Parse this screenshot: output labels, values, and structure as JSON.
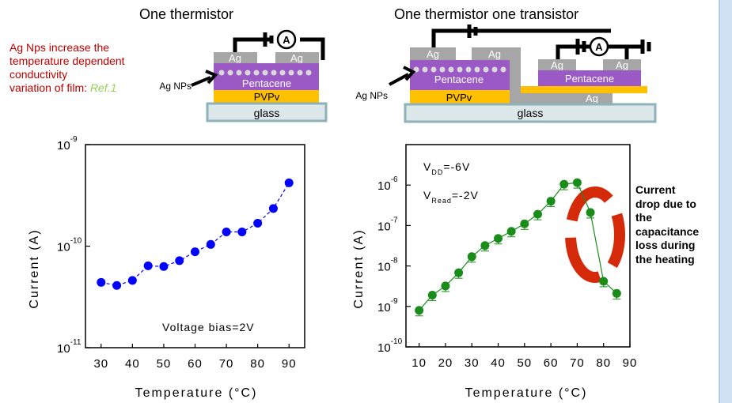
{
  "left_panel": {
    "title": "One thermistor",
    "note_lines": [
      "Ag Nps increase the",
      "temperature dependent",
      "conductivity",
      "variation of film:"
    ],
    "note_ref": "Ref.1",
    "device": {
      "electrode_left": "Ag",
      "electrode_right": "Ag",
      "nps_label": "Ag NPs",
      "semiconductor": "Pentacene",
      "dielectric": "PVPv",
      "substrate": "glass",
      "meter": "A"
    }
  },
  "right_panel": {
    "title": "One thermistor one transistor",
    "device": {
      "electrode_1": "Ag",
      "electrode_2": "Ag",
      "electrode_3": "Ag",
      "electrode_4": "Ag",
      "gate": "Ag",
      "nps_label": "Ag NPs",
      "semiconductor_1": "Pentacene",
      "semiconductor_2": "Pentacene",
      "dielectric": "PVPv",
      "substrate": "glass",
      "meter": "A"
    },
    "callout_lines": [
      "Current",
      "drop due to",
      "the",
      "capacitance",
      "loss during",
      "the heating"
    ]
  },
  "colors": {
    "ag": "#a6a6a6",
    "pentacene": "#9b59c6",
    "pvpv": "#ffc000",
    "glass_fill": "#dce8ea",
    "glass_border": "#8fb1b8",
    "left_series": "#0000ff",
    "right_series": "#1a8c1a",
    "ellipse": "#d42a0a",
    "note": "#c00000",
    "ref": "#92d050"
  },
  "chart_data": [
    {
      "type": "scatter",
      "yscale": "log",
      "xlabel": "Temperature (°C)",
      "ylabel": "Current (A)",
      "xlim": [
        25,
        95
      ],
      "ylim": [
        1e-11,
        1e-09
      ],
      "x_ticks": [
        "30",
        "40",
        "50",
        "60",
        "70",
        "80",
        "90"
      ],
      "y_ticks": [
        {
          "base": "10",
          "exp": "-11"
        },
        {
          "base": "10",
          "exp": "-10"
        },
        {
          "base": "10",
          "exp": "-9"
        }
      ],
      "annotation": "Voltage bias=2V",
      "series": [
        {
          "x": [
            30,
            35,
            40,
            45,
            50,
            55,
            60,
            65,
            70,
            75,
            80,
            85,
            90
          ],
          "y": [
            4.4e-11,
            4.1e-11,
            4.6e-11,
            6.4e-11,
            6.3e-11,
            7.2e-11,
            8.8e-11,
            1.04e-10,
            1.38e-10,
            1.38e-10,
            1.68e-10,
            2.35e-10,
            4.2e-10
          ],
          "connector": "dashed"
        }
      ]
    },
    {
      "type": "scatter",
      "yscale": "log",
      "xlabel": "Temperature (°C)",
      "ylabel": "Current (A)",
      "xlim": [
        5,
        90
      ],
      "ylim": [
        1e-10,
        1e-05
      ],
      "x_ticks": [
        "10",
        "20",
        "30",
        "40",
        "50",
        "60",
        "70",
        "80",
        "90"
      ],
      "y_ticks": [
        {
          "base": "10",
          "exp": "-10"
        },
        {
          "base": "10",
          "exp": "-9"
        },
        {
          "base": "10",
          "exp": "-8"
        },
        {
          "base": "10",
          "exp": "-7"
        },
        {
          "base": "10",
          "exp": "-6"
        }
      ],
      "annotations": [
        {
          "main": "V",
          "sub": "DD",
          "rest": "=-6V"
        },
        {
          "main": "V",
          "sub": "Read",
          "rest": "=-2V"
        }
      ],
      "series": [
        {
          "x": [
            10,
            15,
            20,
            25,
            30,
            35,
            40,
            45,
            50,
            55,
            60,
            65,
            70,
            75,
            80,
            85
          ],
          "y": [
            8e-10,
            1.9e-09,
            3.2e-09,
            6.8e-09,
            1.7e-08,
            3.2e-08,
            4.8e-08,
            7.2e-08,
            1.1e-07,
            1.9e-07,
            4e-07,
            1.05e-06,
            1.15e-06,
            2.1e-07,
            4.2e-09,
            2.1e-09
          ],
          "error_bars": true,
          "connector": "solid"
        }
      ]
    }
  ]
}
